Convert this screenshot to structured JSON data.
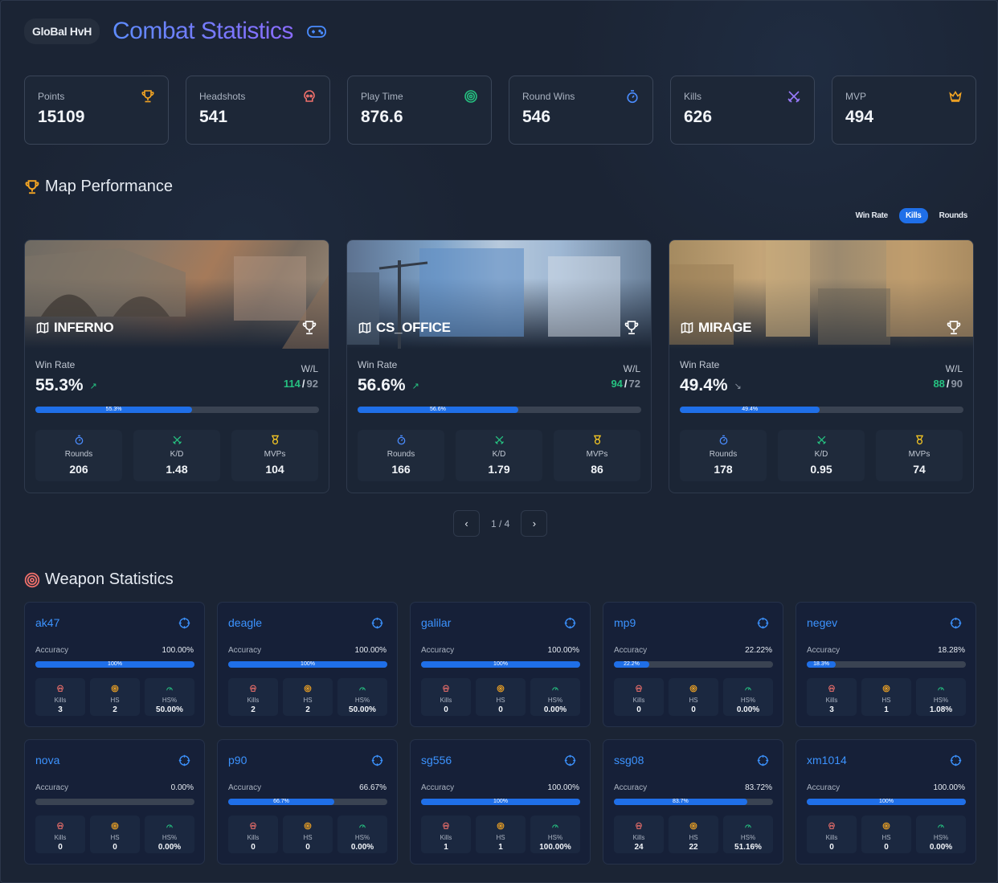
{
  "header": {
    "brand": "GloBal HvH",
    "title": "Combat Statistics"
  },
  "stats": [
    {
      "label": "Points",
      "value": "15109",
      "icon": "trophy-icon",
      "color": "#f5a623"
    },
    {
      "label": "Headshots",
      "value": "541",
      "icon": "skull-icon",
      "color": "#f0706b"
    },
    {
      "label": "Play Time",
      "value": "876.6",
      "icon": "target-icon",
      "color": "#26c281"
    },
    {
      "label": "Round Wins",
      "value": "546",
      "icon": "stopwatch-icon",
      "color": "#4a8cff"
    },
    {
      "label": "Kills",
      "value": "626",
      "icon": "crossed-swords-icon",
      "color": "#9a7bff"
    },
    {
      "label": "MVP",
      "value": "494",
      "icon": "crown-icon",
      "color": "#f5a623"
    }
  ],
  "map_section": {
    "title": "Map Performance",
    "toggle": [
      "Win Rate",
      "Kills",
      "Rounds"
    ],
    "active_toggle": "Kills"
  },
  "maps": [
    {
      "name": "INFERNO",
      "win_rate_label": "Win Rate",
      "win_rate": "55.3%",
      "win_rate_fraction": 0.553,
      "bar_text": "55.3%",
      "trend": "↗",
      "wl_label": "W/L",
      "wins": "114",
      "losses": "92",
      "metrics": [
        {
          "label": "Rounds",
          "value": "206"
        },
        {
          "label": "K/D",
          "value": "1.48"
        },
        {
          "label": "MVPs",
          "value": "104"
        }
      ]
    },
    {
      "name": "CS_OFFICE",
      "win_rate_label": "Win Rate",
      "win_rate": "56.6%",
      "win_rate_fraction": 0.566,
      "bar_text": "56.6%",
      "trend": "↗",
      "wl_label": "W/L",
      "wins": "94",
      "losses": "72",
      "metrics": [
        {
          "label": "Rounds",
          "value": "166"
        },
        {
          "label": "K/D",
          "value": "1.79"
        },
        {
          "label": "MVPs",
          "value": "86"
        }
      ]
    },
    {
      "name": "MIRAGE",
      "win_rate_label": "Win Rate",
      "win_rate": "49.4%",
      "win_rate_fraction": 0.494,
      "bar_text": "49.4%",
      "trend": "↘",
      "wl_label": "W/L",
      "wins": "88",
      "losses": "90",
      "metrics": [
        {
          "label": "Rounds",
          "value": "178"
        },
        {
          "label": "K/D",
          "value": "0.95"
        },
        {
          "label": "MVPs",
          "value": "74"
        }
      ]
    }
  ],
  "pager": {
    "text": "1 / 4",
    "prev": "‹",
    "next": "›"
  },
  "weapon_section": {
    "title": "Weapon Statistics"
  },
  "weapon_labels": {
    "accuracy": "Accuracy",
    "kills": "Kills",
    "hs": "HS",
    "hs_pct": "HS%"
  },
  "weapons": [
    {
      "name": "ak47",
      "accuracy": "100.00%",
      "fraction": 1.0,
      "bar_text": "100%",
      "kills": "3",
      "hs": "2",
      "hs_pct": "50.00%"
    },
    {
      "name": "deagle",
      "accuracy": "100.00%",
      "fraction": 1.0,
      "bar_text": "100%",
      "kills": "2",
      "hs": "2",
      "hs_pct": "50.00%"
    },
    {
      "name": "galilar",
      "accuracy": "100.00%",
      "fraction": 1.0,
      "bar_text": "100%",
      "kills": "0",
      "hs": "0",
      "hs_pct": "0.00%"
    },
    {
      "name": "mp9",
      "accuracy": "22.22%",
      "fraction": 0.2222,
      "bar_text": "22.2%",
      "kills": "0",
      "hs": "0",
      "hs_pct": "0.00%"
    },
    {
      "name": "negev",
      "accuracy": "18.28%",
      "fraction": 0.1828,
      "bar_text": "18.3%",
      "kills": "3",
      "hs": "1",
      "hs_pct": "1.08%"
    },
    {
      "name": "nova",
      "accuracy": "0.00%",
      "fraction": 0.0,
      "bar_text": "",
      "kills": "0",
      "hs": "0",
      "hs_pct": "0.00%"
    },
    {
      "name": "p90",
      "accuracy": "66.67%",
      "fraction": 0.6667,
      "bar_text": "66.7%",
      "kills": "0",
      "hs": "0",
      "hs_pct": "0.00%"
    },
    {
      "name": "sg556",
      "accuracy": "100.00%",
      "fraction": 1.0,
      "bar_text": "100%",
      "kills": "1",
      "hs": "1",
      "hs_pct": "100.00%"
    },
    {
      "name": "ssg08",
      "accuracy": "83.72%",
      "fraction": 0.8372,
      "bar_text": "83.7%",
      "kills": "24",
      "hs": "22",
      "hs_pct": "51.16%"
    },
    {
      "name": "xm1014",
      "accuracy": "100.00%",
      "fraction": 1.0,
      "bar_text": "100%",
      "kills": "0",
      "hs": "0",
      "hs_pct": "0.00%"
    }
  ]
}
